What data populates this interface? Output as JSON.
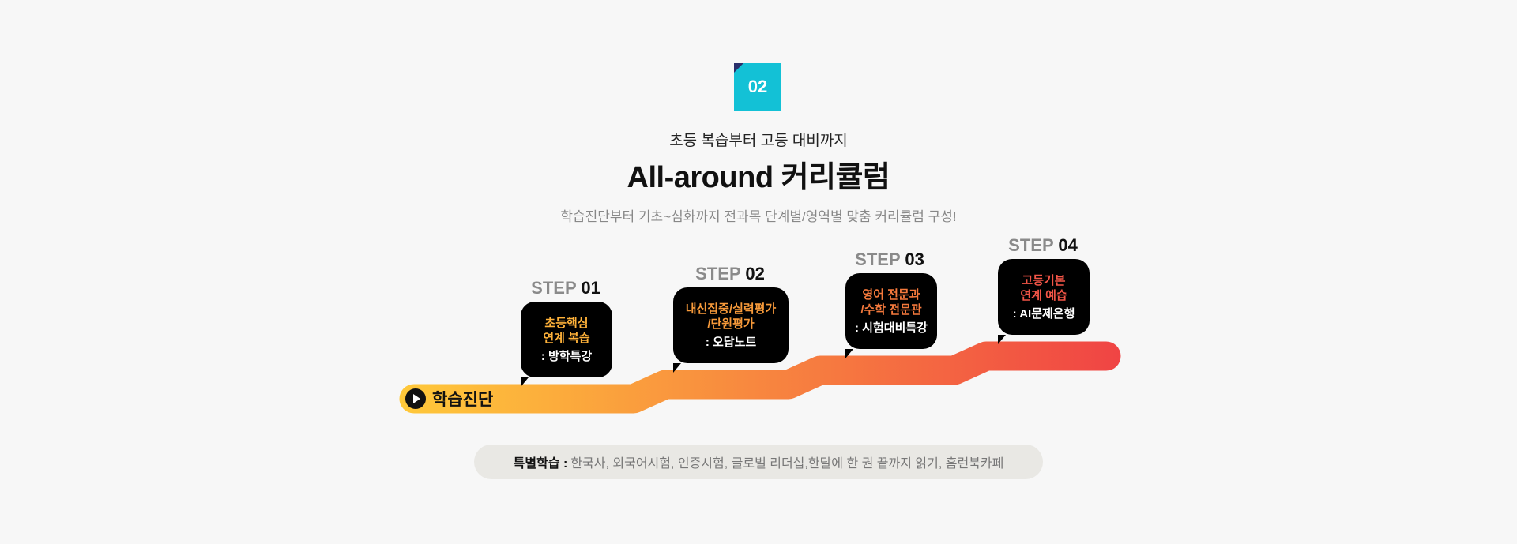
{
  "section": {
    "number": "02",
    "subtitle": "초등 복습부터 고등 대비까지",
    "title": "All-around 커리큘럼",
    "description": "학습진단부터 기초~심화까지 전과목 단계별/영역별 맞춤 커리큘럼 구성!"
  },
  "roadmap": {
    "start_label": "학습진단",
    "gradient_start": "#ffc93a",
    "gradient_end": "#f04444",
    "steps": [
      {
        "word": "STEP",
        "num": "01",
        "highlight": [
          "초등핵심",
          "연계 복습"
        ],
        "sub": ": 방학특강",
        "color": "#ffb23a"
      },
      {
        "word": "STEP",
        "num": "02",
        "highlight": [
          "내신집중/실력평가",
          "/단원평가"
        ],
        "sub": ": 오답노트",
        "color": "#f79a3a"
      },
      {
        "word": "STEP",
        "num": "03",
        "highlight": [
          "영어 전문과",
          "/수학 전문관"
        ],
        "sub": ": 시험대비특강",
        "color": "#f4793c"
      },
      {
        "word": "STEP",
        "num": "04",
        "highlight": [
          "고등기본",
          "연계 예습"
        ],
        "sub": ": AI문제은행",
        "color": "#f25547"
      }
    ]
  },
  "special": {
    "label": "특별학습 :",
    "items": "한국사, 외국어시험, 인증시험, 글로벌 리더십,한달에 한 권 끝까지 읽기, 홈런북카페"
  }
}
